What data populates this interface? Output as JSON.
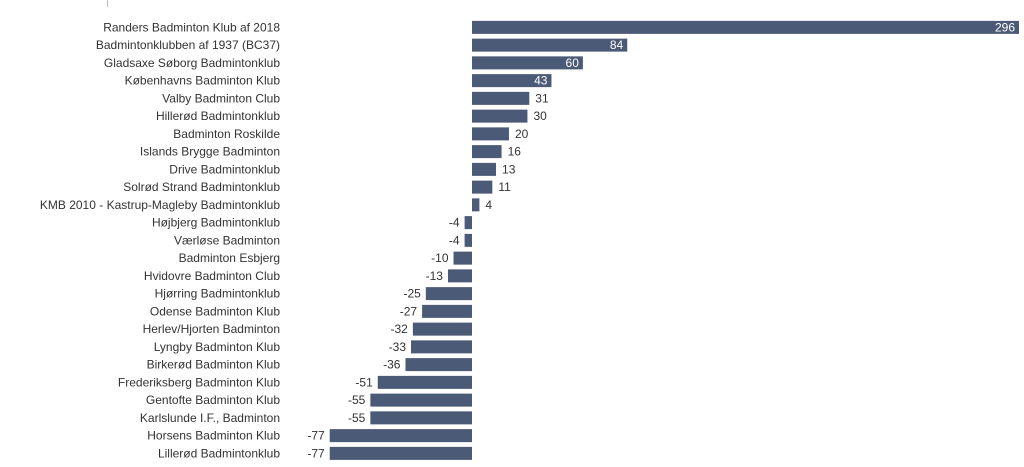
{
  "chart_data": {
    "type": "bar",
    "orientation": "horizontal",
    "bar_color": "#4b5a76",
    "label_color": "#333333",
    "inside_label_color": "#ffffff",
    "xlim": [
      -77,
      296
    ],
    "grid": false,
    "categories": [
      "Randers Badminton Klub af 2018",
      "Badmintonklubben af 1937 (BC37)",
      "Gladsaxe Søborg Badmintonklub",
      "Københavns Badminton Klub",
      "Valby Badminton Club",
      "Hillerød Badmintonklub",
      "Badminton Roskilde",
      "Islands Brygge Badminton",
      "Drive Badmintonklub",
      "Solrød Strand Badmintonklub",
      "KMB 2010 - Kastrup-Magleby Badmintonklub",
      "Højbjerg Badmintonklub",
      "Værløse Badminton",
      "Badminton Esbjerg",
      "Hvidovre Badminton Club",
      "Hjørring Badmintonklub",
      "Odense Badminton Klub",
      "Herlev/Hjorten Badminton",
      "Lyngby Badminton Klub",
      "Birkerød Badminton Klub",
      "Frederiksberg Badminton Klub",
      "Gentofte Badminton Klub",
      "Karlslunde I.F., Badminton",
      "Horsens Badminton Klub",
      "Lillerød Badmintonklub"
    ],
    "values": [
      296,
      84,
      60,
      43,
      31,
      30,
      20,
      16,
      13,
      11,
      4,
      -4,
      -4,
      -10,
      -13,
      -25,
      -27,
      -32,
      -33,
      -36,
      -51,
      -55,
      -55,
      -77,
      -77
    ]
  }
}
